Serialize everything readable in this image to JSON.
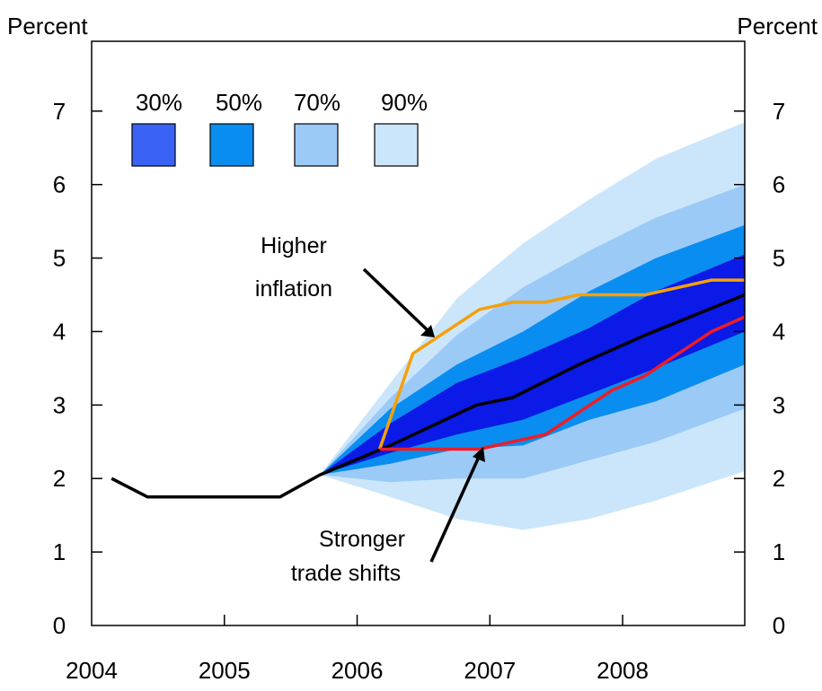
{
  "chart_data": {
    "type": "area",
    "left_axis_label": "Percent",
    "right_axis_label": "Percent",
    "ylim": [
      0,
      8
    ],
    "xlim": [
      2004.0,
      2008.92
    ],
    "y_ticks": [
      "0",
      "1",
      "2",
      "3",
      "4",
      "5",
      "6",
      "7"
    ],
    "x_ticks": [
      "2004",
      "2005",
      "2006",
      "2007",
      "2008"
    ],
    "legend": {
      "placement": "top-left",
      "items": [
        {
          "label": "30%",
          "color": "#3a63f5"
        },
        {
          "label": "50%",
          "color": "#0a8df0"
        },
        {
          "label": "70%",
          "color": "#9ccaf6"
        },
        {
          "label": "90%",
          "color": "#cbe6fb"
        }
      ]
    },
    "fan_colors": {
      "band_90": "#cbe6fb",
      "band_70": "#9ccaf6",
      "band_50": "#0a8df0",
      "band_30": "#0b1ae6"
    },
    "fan_x": [
      2005.72,
      2006.25,
      2006.75,
      2007.25,
      2007.75,
      2008.25,
      2008.92
    ],
    "bands": [
      {
        "name": "90%",
        "lower": [
          2.05,
          1.75,
          1.45,
          1.3,
          1.45,
          1.7,
          2.1
        ],
        "upper": [
          2.05,
          3.3,
          4.45,
          5.2,
          5.8,
          6.35,
          6.85
        ]
      },
      {
        "name": "70%",
        "lower": [
          2.05,
          1.95,
          2.0,
          2.0,
          2.25,
          2.5,
          2.95
        ],
        "upper": [
          2.05,
          3.1,
          3.95,
          4.6,
          5.1,
          5.55,
          6.0
        ]
      },
      {
        "name": "50%",
        "lower": [
          2.05,
          2.2,
          2.4,
          2.45,
          2.8,
          3.05,
          3.55
        ],
        "upper": [
          2.05,
          2.95,
          3.55,
          4.0,
          4.55,
          5.0,
          5.45
        ]
      },
      {
        "name": "30%",
        "lower": [
          2.05,
          2.35,
          2.6,
          2.8,
          3.15,
          3.5,
          4.0
        ],
        "upper": [
          2.05,
          2.75,
          3.3,
          3.65,
          4.05,
          4.55,
          5.05
        ]
      }
    ],
    "series": [
      {
        "color": "#000000",
        "x": [
          2004.15,
          2004.42,
          2004.75,
          2005.0,
          2005.42,
          2005.72,
          2006.25,
          2006.9,
          2007.17,
          2007.67,
          2008.17,
          2008.92
        ],
        "y": [
          2.0,
          1.75,
          1.75,
          1.75,
          1.75,
          2.05,
          2.45,
          3.0,
          3.1,
          3.55,
          3.95,
          4.5
        ]
      },
      {
        "color": "#f5a00a",
        "x": [
          2006.17,
          2006.42,
          2006.92,
          2007.17,
          2007.42,
          2007.67,
          2007.92,
          2008.17,
          2008.42,
          2008.67,
          2008.92
        ],
        "y": [
          2.4,
          3.7,
          4.3,
          4.4,
          4.4,
          4.5,
          4.5,
          4.5,
          4.6,
          4.7,
          4.7
        ]
      },
      {
        "color": "#ee1c25",
        "x": [
          2006.17,
          2006.5,
          2006.92,
          2007.17,
          2007.42,
          2007.67,
          2007.92,
          2008.17,
          2008.42,
          2008.67,
          2008.92
        ],
        "y": [
          2.4,
          2.4,
          2.4,
          2.5,
          2.6,
          2.9,
          3.2,
          3.4,
          3.7,
          4.0,
          4.2
        ]
      }
    ],
    "annotations": [
      {
        "lines": [
          "Higher",
          "inflation"
        ]
      },
      {
        "lines": [
          "Stronger",
          "trade shifts"
        ]
      }
    ]
  }
}
